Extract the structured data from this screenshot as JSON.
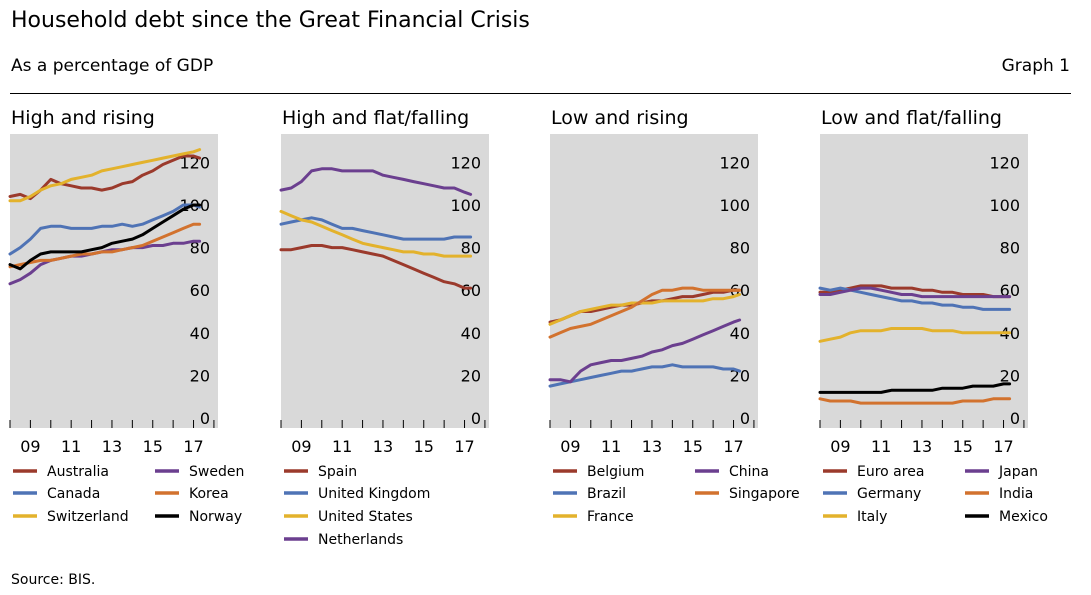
{
  "header": {
    "title": "Household debt since the Great Financial Crisis",
    "subtitle": "As a percentage of GDP",
    "graph_label": "Graph 1"
  },
  "footer": {
    "source": "Source: BIS."
  },
  "chart_data": [
    {
      "type": "line",
      "title": "High and rising",
      "x_tick_labels": [
        "09",
        "11",
        "13",
        "15",
        "17"
      ],
      "y_tick_labels": [
        "0",
        "20",
        "40",
        "60",
        "80",
        "100",
        "120"
      ],
      "xlim": [
        2008,
        2018.2
      ],
      "ylim": [
        0,
        130
      ],
      "grid": false,
      "y_axis_side": "right",
      "series": [
        {
          "name": "Australia",
          "color": "#9b3a2c",
          "x": [
            2008,
            2008.5,
            2009,
            2009.5,
            2010,
            2010.5,
            2011,
            2011.5,
            2012,
            2012.5,
            2013,
            2013.5,
            2014,
            2014.5,
            2015,
            2015.5,
            2016,
            2016.5,
            2017,
            2017.3
          ],
          "y": [
            104,
            105,
            103,
            107,
            112,
            110,
            109,
            108,
            108,
            107,
            108,
            110,
            111,
            114,
            116,
            119,
            121,
            123,
            123,
            122
          ]
        },
        {
          "name": "Canada",
          "color": "#4f73b5",
          "x": [
            2008,
            2008.5,
            2009,
            2009.5,
            2010,
            2010.5,
            2011,
            2011.5,
            2012,
            2012.5,
            2013,
            2013.5,
            2014,
            2014.5,
            2015,
            2015.5,
            2016,
            2016.5,
            2017,
            2017.3
          ],
          "y": [
            77,
            80,
            84,
            89,
            90,
            90,
            89,
            89,
            89,
            90,
            90,
            91,
            90,
            91,
            93,
            95,
            97,
            100,
            100,
            99
          ]
        },
        {
          "name": "Switzerland",
          "color": "#e3b22c",
          "x": [
            2008,
            2008.5,
            2009,
            2009.5,
            2010,
            2010.5,
            2011,
            2011.5,
            2012,
            2012.5,
            2013,
            2013.5,
            2014,
            2014.5,
            2015,
            2015.5,
            2016,
            2016.5,
            2017,
            2017.3
          ],
          "y": [
            102,
            102,
            104,
            107,
            109,
            110,
            112,
            113,
            114,
            116,
            117,
            118,
            119,
            120,
            121,
            122,
            123,
            124,
            125,
            126
          ]
        },
        {
          "name": "Sweden",
          "color": "#6b3f8f",
          "x": [
            2008,
            2008.5,
            2009,
            2009.5,
            2010,
            2010.5,
            2011,
            2011.5,
            2012,
            2012.5,
            2013,
            2013.5,
            2014,
            2014.5,
            2015,
            2015.5,
            2016,
            2016.5,
            2017,
            2017.3
          ],
          "y": [
            63,
            65,
            68,
            72,
            74,
            75,
            76,
            76,
            77,
            78,
            79,
            79,
            80,
            80,
            81,
            81,
            82,
            82,
            83,
            83
          ]
        },
        {
          "name": "Korea",
          "color": "#d2722e",
          "x": [
            2008,
            2008.5,
            2009,
            2009.5,
            2010,
            2010.5,
            2011,
            2011.5,
            2012,
            2012.5,
            2013,
            2013.5,
            2014,
            2014.5,
            2015,
            2015.5,
            2016,
            2016.5,
            2017,
            2017.3
          ],
          "y": [
            71,
            72,
            73,
            74,
            74,
            75,
            76,
            77,
            77,
            78,
            78,
            79,
            80,
            81,
            83,
            85,
            87,
            89,
            91,
            91
          ]
        },
        {
          "name": "Norway",
          "color": "#000000",
          "x": [
            2008,
            2008.5,
            2009,
            2009.5,
            2010,
            2010.5,
            2011,
            2011.5,
            2012,
            2012.5,
            2013,
            2013.5,
            2014,
            2014.5,
            2015,
            2015.5,
            2016,
            2016.5,
            2017,
            2017.3
          ],
          "y": [
            72,
            70,
            74,
            77,
            78,
            78,
            78,
            78,
            79,
            80,
            82,
            83,
            84,
            86,
            89,
            92,
            95,
            98,
            100,
            100
          ]
        }
      ]
    },
    {
      "type": "line",
      "title": "High and flat/falling",
      "x_tick_labels": [
        "09",
        "11",
        "13",
        "15",
        "17"
      ],
      "y_tick_labels": [
        "0",
        "20",
        "40",
        "60",
        "80",
        "100",
        "120"
      ],
      "xlim": [
        2008,
        2018.2
      ],
      "ylim": [
        0,
        130
      ],
      "grid": false,
      "y_axis_side": "right",
      "series": [
        {
          "name": "Spain",
          "color": "#9b3a2c",
          "x": [
            2008,
            2008.5,
            2009,
            2009.5,
            2010,
            2010.5,
            2011,
            2011.5,
            2012,
            2012.5,
            2013,
            2013.5,
            2014,
            2014.5,
            2015,
            2015.5,
            2016,
            2016.5,
            2017,
            2017.3
          ],
          "y": [
            79,
            79,
            80,
            81,
            81,
            80,
            80,
            79,
            78,
            77,
            76,
            74,
            72,
            70,
            68,
            66,
            64,
            63,
            61,
            61
          ]
        },
        {
          "name": "United Kingdom",
          "color": "#4f73b5",
          "x": [
            2008,
            2008.5,
            2009,
            2009.5,
            2010,
            2010.5,
            2011,
            2011.5,
            2012,
            2012.5,
            2013,
            2013.5,
            2014,
            2014.5,
            2015,
            2015.5,
            2016,
            2016.5,
            2017,
            2017.3
          ],
          "y": [
            91,
            92,
            93,
            94,
            93,
            91,
            89,
            89,
            88,
            87,
            86,
            85,
            84,
            84,
            84,
            84,
            84,
            85,
            85,
            85
          ]
        },
        {
          "name": "United States",
          "color": "#e3b22c",
          "x": [
            2008,
            2008.5,
            2009,
            2009.5,
            2010,
            2010.5,
            2011,
            2011.5,
            2012,
            2012.5,
            2013,
            2013.5,
            2014,
            2014.5,
            2015,
            2015.5,
            2016,
            2016.5,
            2017,
            2017.3
          ],
          "y": [
            97,
            95,
            93,
            92,
            90,
            88,
            86,
            84,
            82,
            81,
            80,
            79,
            78,
            78,
            77,
            77,
            76,
            76,
            76,
            76
          ]
        },
        {
          "name": "Netherlands",
          "color": "#6b3f8f",
          "x": [
            2008,
            2008.5,
            2009,
            2009.5,
            2010,
            2010.5,
            2011,
            2011.5,
            2012,
            2012.5,
            2013,
            2013.5,
            2014,
            2014.5,
            2015,
            2015.5,
            2016,
            2016.5,
            2017,
            2017.3
          ],
          "y": [
            107,
            108,
            111,
            116,
            117,
            117,
            116,
            116,
            116,
            116,
            114,
            113,
            112,
            111,
            110,
            109,
            108,
            108,
            106,
            105
          ]
        }
      ]
    },
    {
      "type": "line",
      "title": "Low and rising",
      "x_tick_labels": [
        "09",
        "11",
        "13",
        "15",
        "17"
      ],
      "y_tick_labels": [
        "0",
        "20",
        "40",
        "60",
        "80",
        "100",
        "120"
      ],
      "xlim": [
        2008,
        2018.2
      ],
      "ylim": [
        0,
        130
      ],
      "grid": false,
      "y_axis_side": "right",
      "series": [
        {
          "name": "Belgium",
          "color": "#9b3a2c",
          "x": [
            2008,
            2008.5,
            2009,
            2009.5,
            2010,
            2010.5,
            2011,
            2011.5,
            2012,
            2012.5,
            2013,
            2013.5,
            2014,
            2014.5,
            2015,
            2015.5,
            2016,
            2016.5,
            2017,
            2017.3
          ],
          "y": [
            45,
            46,
            48,
            50,
            50,
            51,
            52,
            53,
            53,
            54,
            55,
            55,
            56,
            57,
            57,
            58,
            59,
            59,
            60,
            60
          ]
        },
        {
          "name": "Brazil",
          "color": "#4f73b5",
          "x": [
            2008,
            2008.5,
            2009,
            2009.5,
            2010,
            2010.5,
            2011,
            2011.5,
            2012,
            2012.5,
            2013,
            2013.5,
            2014,
            2014.5,
            2015,
            2015.5,
            2016,
            2016.5,
            2017,
            2017.3
          ],
          "y": [
            15,
            16,
            17,
            18,
            19,
            20,
            21,
            22,
            22,
            23,
            24,
            24,
            25,
            24,
            24,
            24,
            24,
            23,
            23,
            22
          ]
        },
        {
          "name": "France",
          "color": "#e3b22c",
          "x": [
            2008,
            2008.5,
            2009,
            2009.5,
            2010,
            2010.5,
            2011,
            2011.5,
            2012,
            2012.5,
            2013,
            2013.5,
            2014,
            2014.5,
            2015,
            2015.5,
            2016,
            2016.5,
            2017,
            2017.3
          ],
          "y": [
            44,
            46,
            48,
            50,
            51,
            52,
            53,
            53,
            54,
            54,
            54,
            55,
            55,
            55,
            55,
            55,
            56,
            56,
            57,
            58
          ]
        },
        {
          "name": "China",
          "color": "#6b3f8f",
          "x": [
            2008,
            2008.5,
            2009,
            2009.5,
            2010,
            2010.5,
            2011,
            2011.5,
            2012,
            2012.5,
            2013,
            2013.5,
            2014,
            2014.5,
            2015,
            2015.5,
            2016,
            2016.5,
            2017,
            2017.3
          ],
          "y": [
            18,
            18,
            17,
            22,
            25,
            26,
            27,
            27,
            28,
            29,
            31,
            32,
            34,
            35,
            37,
            39,
            41,
            43,
            45,
            46
          ]
        },
        {
          "name": "Singapore",
          "color": "#d2722e",
          "x": [
            2008,
            2008.5,
            2009,
            2009.5,
            2010,
            2010.5,
            2011,
            2011.5,
            2012,
            2012.5,
            2013,
            2013.5,
            2014,
            2014.5,
            2015,
            2015.5,
            2016,
            2016.5,
            2017,
            2017.3
          ],
          "y": [
            38,
            40,
            42,
            43,
            44,
            46,
            48,
            50,
            52,
            55,
            58,
            60,
            60,
            61,
            61,
            60,
            60,
            60,
            60,
            60
          ]
        }
      ]
    },
    {
      "type": "line",
      "title": "Low and flat/falling",
      "x_tick_labels": [
        "09",
        "11",
        "13",
        "15",
        "17"
      ],
      "y_tick_labels": [
        "0",
        "20",
        "40",
        "60",
        "80",
        "100",
        "120"
      ],
      "xlim": [
        2008,
        2018.2
      ],
      "ylim": [
        0,
        130
      ],
      "grid": false,
      "y_axis_side": "right",
      "series": [
        {
          "name": "Euro area",
          "color": "#9b3a2c",
          "x": [
            2008,
            2008.5,
            2009,
            2009.5,
            2010,
            2010.5,
            2011,
            2011.5,
            2012,
            2012.5,
            2013,
            2013.5,
            2014,
            2014.5,
            2015,
            2015.5,
            2016,
            2016.5,
            2017,
            2017.3
          ],
          "y": [
            59,
            59,
            60,
            61,
            62,
            62,
            62,
            61,
            61,
            61,
            60,
            60,
            59,
            59,
            58,
            58,
            58,
            57,
            57,
            57
          ]
        },
        {
          "name": "Germany",
          "color": "#4f73b5",
          "x": [
            2008,
            2008.5,
            2009,
            2009.5,
            2010,
            2010.5,
            2011,
            2011.5,
            2012,
            2012.5,
            2013,
            2013.5,
            2014,
            2014.5,
            2015,
            2015.5,
            2016,
            2016.5,
            2017,
            2017.3
          ],
          "y": [
            61,
            60,
            61,
            60,
            59,
            58,
            57,
            56,
            55,
            55,
            54,
            54,
            53,
            53,
            52,
            52,
            51,
            51,
            51,
            51
          ]
        },
        {
          "name": "Italy",
          "color": "#e3b22c",
          "x": [
            2008,
            2008.5,
            2009,
            2009.5,
            2010,
            2010.5,
            2011,
            2011.5,
            2012,
            2012.5,
            2013,
            2013.5,
            2014,
            2014.5,
            2015,
            2015.5,
            2016,
            2016.5,
            2017,
            2017.3
          ],
          "y": [
            36,
            37,
            38,
            40,
            41,
            41,
            41,
            42,
            42,
            42,
            42,
            41,
            41,
            41,
            40,
            40,
            40,
            40,
            40,
            40
          ]
        },
        {
          "name": "Japan",
          "color": "#6b3f8f",
          "x": [
            2008,
            2008.5,
            2009,
            2009.5,
            2010,
            2010.5,
            2011,
            2011.5,
            2012,
            2012.5,
            2013,
            2013.5,
            2014,
            2014.5,
            2015,
            2015.5,
            2016,
            2016.5,
            2017,
            2017.3
          ],
          "y": [
            58,
            58,
            59,
            60,
            61,
            61,
            60,
            59,
            58,
            58,
            57,
            57,
            57,
            57,
            57,
            57,
            57,
            57,
            57,
            57
          ]
        },
        {
          "name": "India",
          "color": "#d2722e",
          "x": [
            2008,
            2008.5,
            2009,
            2009.5,
            2010,
            2010.5,
            2011,
            2011.5,
            2012,
            2012.5,
            2013,
            2013.5,
            2014,
            2014.5,
            2015,
            2015.5,
            2016,
            2016.5,
            2017,
            2017.3
          ],
          "y": [
            9,
            8,
            8,
            8,
            7,
            7,
            7,
            7,
            7,
            7,
            7,
            7,
            7,
            7,
            8,
            8,
            8,
            9,
            9,
            9
          ]
        },
        {
          "name": "Mexico",
          "color": "#000000",
          "x": [
            2008,
            2008.5,
            2009,
            2009.5,
            2010,
            2010.5,
            2011,
            2011.5,
            2012,
            2012.5,
            2013,
            2013.5,
            2014,
            2014.5,
            2015,
            2015.5,
            2016,
            2016.5,
            2017,
            2017.3
          ],
          "y": [
            12,
            12,
            12,
            12,
            12,
            12,
            12,
            13,
            13,
            13,
            13,
            13,
            14,
            14,
            14,
            15,
            15,
            15,
            16,
            16
          ]
        }
      ]
    }
  ]
}
